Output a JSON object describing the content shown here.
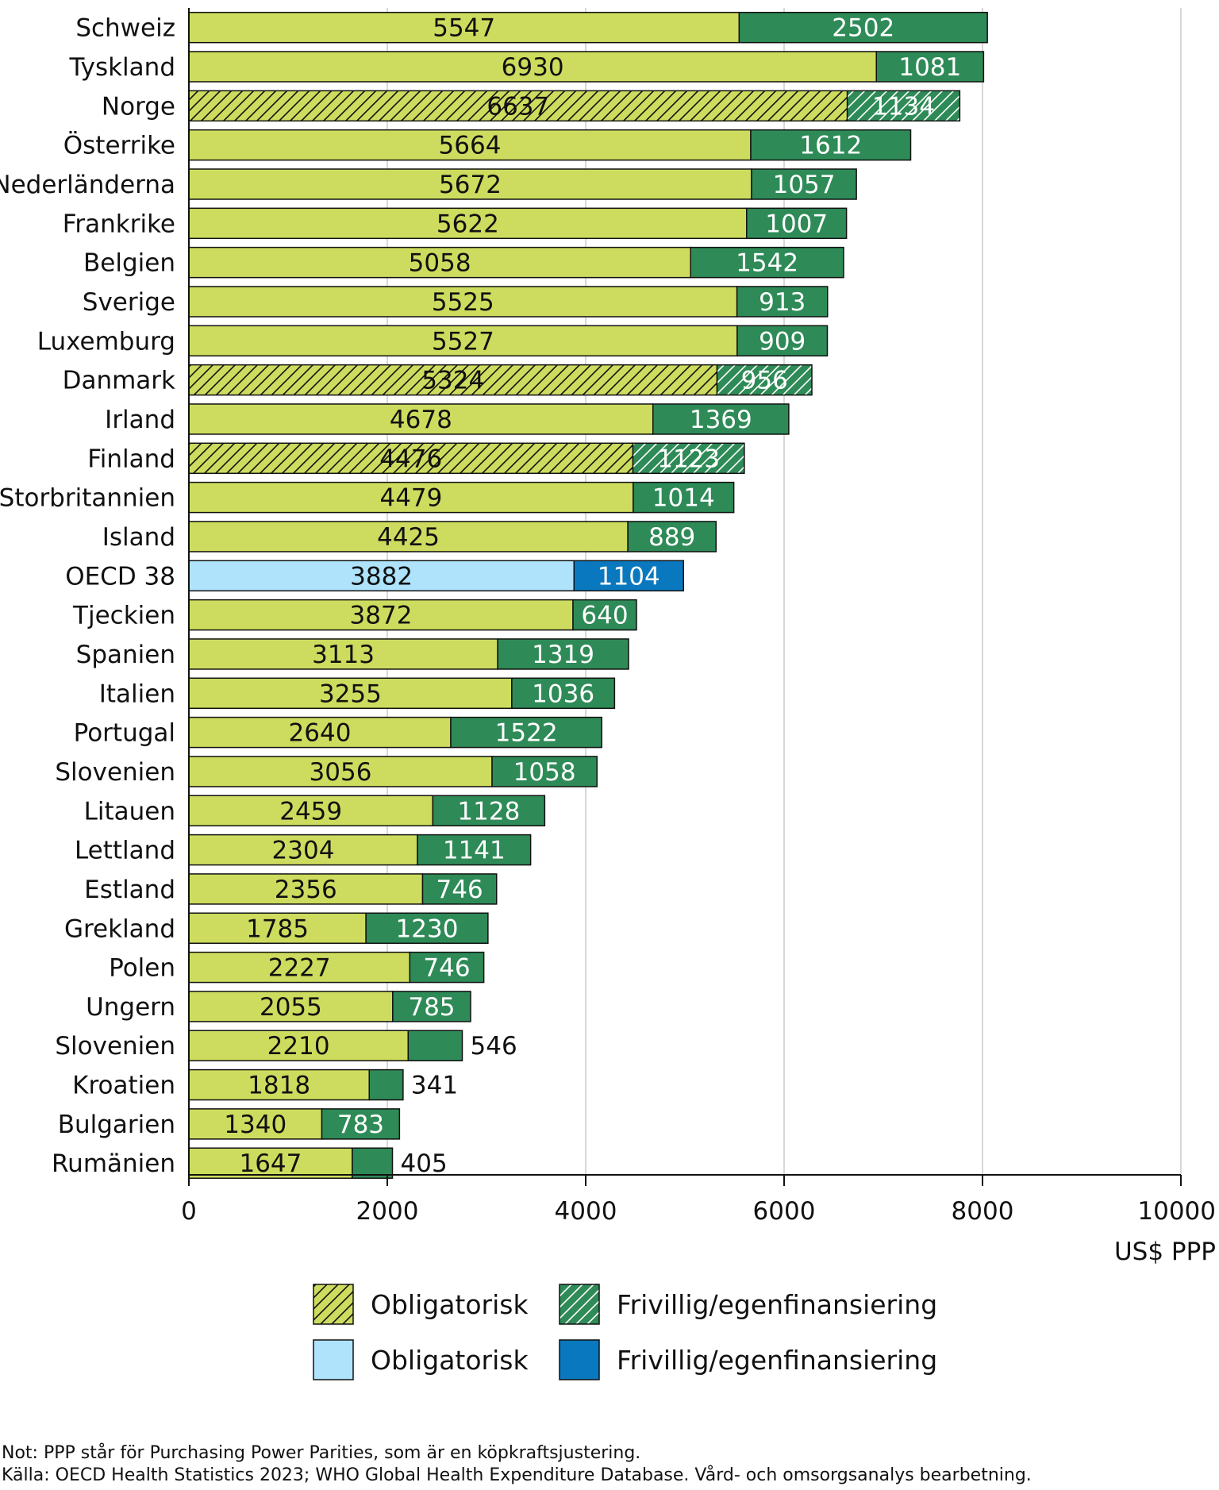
{
  "chart_data": {
    "type": "bar",
    "orientation": "horizontal",
    "stacked": true,
    "categories": [
      "Schweiz",
      "Tyskland",
      "Norge",
      "Österrike",
      "Nederländerna",
      "Frankrike",
      "Belgien",
      "Sverige",
      "Luxemburg",
      "Danmark",
      "Irland",
      "Finland",
      "Storbritannien",
      "Island",
      "OECD 38",
      "Tjeckien",
      "Spanien",
      "Italien",
      "Portugal",
      "Slovenien",
      "Litauen",
      "Lettland",
      "Estland",
      "Grekland",
      "Polen",
      "Ungern",
      "Slovenien",
      "Kroatien",
      "Bulgarien",
      "Rumänien"
    ],
    "series": [
      {
        "name": "Obligatorisk",
        "values": [
          5547,
          6930,
          6637,
          5664,
          5672,
          5622,
          5058,
          5525,
          5527,
          5324,
          4678,
          4476,
          4479,
          4425,
          3882,
          3872,
          3113,
          3255,
          2640,
          3056,
          2459,
          2304,
          2356,
          1785,
          2227,
          2055,
          2210,
          1818,
          1340,
          1647
        ]
      },
      {
        "name": "Frivillig/egenfinansiering",
        "values": [
          2502,
          1081,
          1134,
          1612,
          1057,
          1007,
          1542,
          913,
          909,
          956,
          1369,
          1123,
          1014,
          889,
          1104,
          640,
          1319,
          1036,
          1522,
          1058,
          1128,
          1141,
          746,
          1230,
          746,
          785,
          546,
          341,
          783,
          405
        ]
      }
    ],
    "hatched_categories": [
      "Norge",
      "Danmark",
      "Finland"
    ],
    "highlight_category": "OECD 38",
    "xlim": [
      0,
      10000
    ],
    "xticks": [
      "0",
      "2000",
      "4000",
      "6000",
      "8000",
      "10000"
    ],
    "xlabel": "US$ PPP",
    "grid": true,
    "colors": {
      "mandatory": "#cddc5e",
      "voluntary": "#2e8b57",
      "oecd_mandatory": "#aee3fb",
      "oecd_voluntary": "#0a78be"
    },
    "legend": [
      {
        "label": "Obligatorisk",
        "style": "mandatory-hatched"
      },
      {
        "label": "Frivillig/egenfinansiering",
        "style": "voluntary-hatched"
      },
      {
        "label": "Obligatorisk",
        "style": "oecd-mandatory"
      },
      {
        "label": "Frivillig/egenfinansiering",
        "style": "oecd-voluntary"
      }
    ]
  },
  "notes": {
    "note": "Not: PPP står för Purchasing Power Parities, som är en köpkraftsjustering.",
    "source": "Källa: OECD Health Statistics 2023; WHO Global Health Expenditure Database. Vård- och omsorgsanalys bearbetning."
  }
}
